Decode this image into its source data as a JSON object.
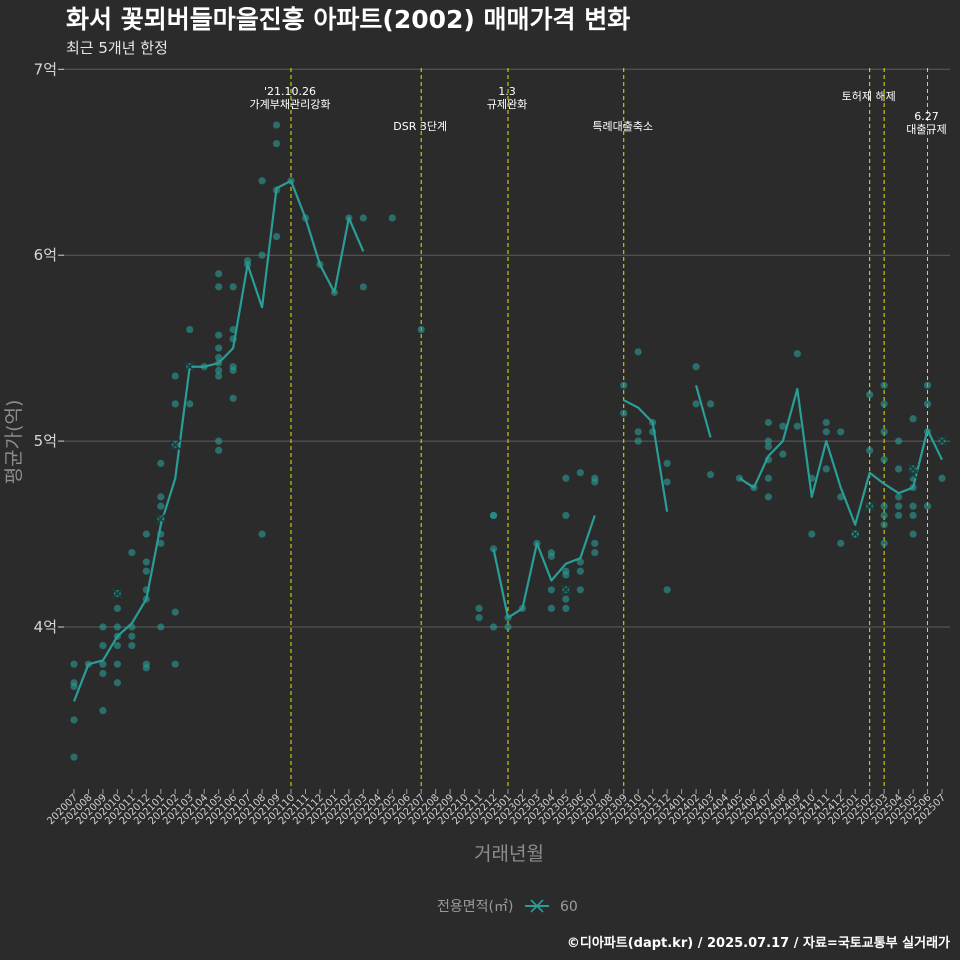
{
  "chart_data": {
    "type": "line",
    "title": "화서 꽃뫼버들마을진흥 아파트(2002) 매매가격 변화",
    "subtitle": "최근 5개년 한정",
    "xlabel": "거래년월",
    "ylabel": "평균가(억)",
    "ylim": [
      3.15,
      7.05
    ],
    "y_ticks": [
      {
        "value": 4,
        "label": "4억"
      },
      {
        "value": 5,
        "label": "5억"
      },
      {
        "value": 6,
        "label": "6억"
      },
      {
        "value": 7,
        "label": "7억"
      }
    ],
    "grid": true,
    "legend_position": "bottom",
    "legend": {
      "title": "전용면적(㎡)",
      "entries": [
        "60"
      ]
    },
    "colors": {
      "line": "#2a9d96",
      "points": "#2a9d96",
      "event_lines": "#e5e500",
      "background": "#2b2b2b",
      "grid": "#5c5c5c"
    },
    "caption": "©디아파트(dapt.kr) / 2025.07.17 / 자료=국토교통부 실거래가",
    "categories": [
      "202007",
      "202008",
      "202009",
      "202010",
      "202011",
      "202012",
      "202101",
      "202102",
      "202103",
      "202104",
      "202105",
      "202106",
      "202107",
      "202108",
      "202109",
      "202110",
      "202111",
      "202112",
      "202201",
      "202202",
      "202203",
      "202204",
      "202205",
      "202206",
      "202207",
      "202208",
      "202209",
      "202210",
      "202211",
      "202212",
      "202301",
      "202302",
      "202303",
      "202304",
      "202305",
      "202306",
      "202307",
      "202308",
      "202309",
      "202310",
      "202311",
      "202312",
      "202401",
      "202402",
      "202403",
      "202404",
      "202405",
      "202406",
      "202407",
      "202408",
      "202409",
      "202410",
      "202411",
      "202412",
      "202501",
      "202502",
      "202503",
      "202504",
      "202505",
      "202506",
      "202507"
    ],
    "series": [
      {
        "name": "60",
        "values": [
          3.6,
          3.8,
          3.82,
          3.95,
          4.02,
          4.15,
          4.55,
          4.8,
          5.4,
          5.4,
          5.42,
          5.5,
          5.95,
          5.72,
          6.36,
          6.4,
          6.2,
          5.95,
          5.8,
          6.2,
          6.02,
          null,
          null,
          null,
          null,
          null,
          null,
          null,
          null,
          4.42,
          4.05,
          4.1,
          4.45,
          4.25,
          4.34,
          4.37,
          4.6,
          null,
          5.22,
          5.18,
          5.1,
          4.62,
          null,
          5.3,
          5.02,
          null,
          4.8,
          4.75,
          4.92,
          5.0,
          5.28,
          4.7,
          5.0,
          4.75,
          4.55,
          4.83,
          4.77,
          4.72,
          4.75,
          5.06,
          4.9
        ]
      }
    ],
    "points": [
      {
        "x": "202007",
        "y": 3.3
      },
      {
        "x": "202007",
        "y": 3.5
      },
      {
        "x": "202007",
        "y": 3.68
      },
      {
        "x": "202007",
        "y": 3.7
      },
      {
        "x": "202007",
        "y": 3.8
      },
      {
        "x": "202008",
        "y": 3.8
      },
      {
        "x": "202009",
        "y": 3.55
      },
      {
        "x": "202009",
        "y": 3.75
      },
      {
        "x": "202009",
        "y": 3.8
      },
      {
        "x": "202009",
        "y": 3.9
      },
      {
        "x": "202009",
        "y": 4.0
      },
      {
        "x": "202010",
        "y": 3.7
      },
      {
        "x": "202010",
        "y": 3.8
      },
      {
        "x": "202010",
        "y": 3.9
      },
      {
        "x": "202010",
        "y": 3.95
      },
      {
        "x": "202010",
        "y": 4.0
      },
      {
        "x": "202010",
        "y": 4.1
      },
      {
        "x": "202010",
        "y": 4.18
      },
      {
        "x": "202011",
        "y": 3.9
      },
      {
        "x": "202011",
        "y": 3.95
      },
      {
        "x": "202011",
        "y": 4.0
      },
      {
        "x": "202011",
        "y": 4.4
      },
      {
        "x": "202012",
        "y": 3.78
      },
      {
        "x": "202012",
        "y": 3.8
      },
      {
        "x": "202012",
        "y": 4.15
      },
      {
        "x": "202012",
        "y": 4.2
      },
      {
        "x": "202012",
        "y": 4.3
      },
      {
        "x": "202012",
        "y": 4.35
      },
      {
        "x": "202012",
        "y": 4.5
      },
      {
        "x": "202101",
        "y": 4.0
      },
      {
        "x": "202101",
        "y": 4.45
      },
      {
        "x": "202101",
        "y": 4.5
      },
      {
        "x": "202101",
        "y": 4.58
      },
      {
        "x": "202101",
        "y": 4.65
      },
      {
        "x": "202101",
        "y": 4.7
      },
      {
        "x": "202101",
        "y": 4.88
      },
      {
        "x": "202102",
        "y": 3.8
      },
      {
        "x": "202102",
        "y": 4.08
      },
      {
        "x": "202102",
        "y": 4.98
      },
      {
        "x": "202102",
        "y": 5.2
      },
      {
        "x": "202102",
        "y": 5.35
      },
      {
        "x": "202103",
        "y": 5.2
      },
      {
        "x": "202103",
        "y": 5.4
      },
      {
        "x": "202103",
        "y": 5.6
      },
      {
        "x": "202104",
        "y": 5.4
      },
      {
        "x": "202105",
        "y": 4.95
      },
      {
        "x": "202105",
        "y": 5.0
      },
      {
        "x": "202105",
        "y": 5.35
      },
      {
        "x": "202105",
        "y": 5.38
      },
      {
        "x": "202105",
        "y": 5.42
      },
      {
        "x": "202105",
        "y": 5.45
      },
      {
        "x": "202105",
        "y": 5.5
      },
      {
        "x": "202105",
        "y": 5.57
      },
      {
        "x": "202105",
        "y": 5.83
      },
      {
        "x": "202105",
        "y": 5.9
      },
      {
        "x": "202106",
        "y": 5.23
      },
      {
        "x": "202106",
        "y": 5.38
      },
      {
        "x": "202106",
        "y": 5.4
      },
      {
        "x": "202106",
        "y": 5.55
      },
      {
        "x": "202106",
        "y": 5.6
      },
      {
        "x": "202106",
        "y": 5.83
      },
      {
        "x": "202107",
        "y": 5.95
      },
      {
        "x": "202107",
        "y": 5.97
      },
      {
        "x": "202108",
        "y": 4.5
      },
      {
        "x": "202108",
        "y": 6.0
      },
      {
        "x": "202108",
        "y": 6.4
      },
      {
        "x": "202109",
        "y": 6.1
      },
      {
        "x": "202109",
        "y": 6.35
      },
      {
        "x": "202109",
        "y": 6.6
      },
      {
        "x": "202109",
        "y": 6.7
      },
      {
        "x": "202110",
        "y": 6.4
      },
      {
        "x": "202111",
        "y": 6.2
      },
      {
        "x": "202112",
        "y": 5.95
      },
      {
        "x": "202201",
        "y": 5.8
      },
      {
        "x": "202202",
        "y": 6.2
      },
      {
        "x": "202203",
        "y": 5.83
      },
      {
        "x": "202203",
        "y": 6.2
      },
      {
        "x": "202205",
        "y": 6.2
      },
      {
        "x": "202207",
        "y": 5.6
      },
      {
        "x": "202211",
        "y": 4.05
      },
      {
        "x": "202211",
        "y": 4.1
      },
      {
        "x": "202212",
        "y": 4.0
      },
      {
        "x": "202212",
        "y": 4.42
      },
      {
        "x": "202212",
        "y": 4.6
      },
      {
        "x": "202212",
        "y": 4.6
      },
      {
        "x": "202301",
        "y": 4.0
      },
      {
        "x": "202301",
        "y": 4.05
      },
      {
        "x": "202302",
        "y": 4.1
      },
      {
        "x": "202303",
        "y": 4.45
      },
      {
        "x": "202304",
        "y": 4.1
      },
      {
        "x": "202304",
        "y": 4.2
      },
      {
        "x": "202304",
        "y": 4.38
      },
      {
        "x": "202304",
        "y": 4.4
      },
      {
        "x": "202305",
        "y": 4.1
      },
      {
        "x": "202305",
        "y": 4.15
      },
      {
        "x": "202305",
        "y": 4.2
      },
      {
        "x": "202305",
        "y": 4.28
      },
      {
        "x": "202305",
        "y": 4.3
      },
      {
        "x": "202305",
        "y": 4.6
      },
      {
        "x": "202305",
        "y": 4.8
      },
      {
        "x": "202306",
        "y": 4.2
      },
      {
        "x": "202306",
        "y": 4.3
      },
      {
        "x": "202306",
        "y": 4.35
      },
      {
        "x": "202306",
        "y": 4.83
      },
      {
        "x": "202307",
        "y": 4.4
      },
      {
        "x": "202307",
        "y": 4.45
      },
      {
        "x": "202307",
        "y": 4.78
      },
      {
        "x": "202307",
        "y": 4.8
      },
      {
        "x": "202309",
        "y": 5.15
      },
      {
        "x": "202309",
        "y": 5.3
      },
      {
        "x": "202310",
        "y": 5.0
      },
      {
        "x": "202310",
        "y": 5.05
      },
      {
        "x": "202310",
        "y": 5.48
      },
      {
        "x": "202311",
        "y": 5.05
      },
      {
        "x": "202311",
        "y": 5.1
      },
      {
        "x": "202312",
        "y": 4.2
      },
      {
        "x": "202312",
        "y": 4.78
      },
      {
        "x": "202312",
        "y": 4.88
      },
      {
        "x": "202402",
        "y": 5.2
      },
      {
        "x": "202402",
        "y": 5.4
      },
      {
        "x": "202403",
        "y": 4.82
      },
      {
        "x": "202403",
        "y": 5.2
      },
      {
        "x": "202405",
        "y": 4.8
      },
      {
        "x": "202406",
        "y": 4.75
      },
      {
        "x": "202407",
        "y": 4.7
      },
      {
        "x": "202407",
        "y": 4.8
      },
      {
        "x": "202407",
        "y": 4.9
      },
      {
        "x": "202407",
        "y": 4.97
      },
      {
        "x": "202407",
        "y": 5.0
      },
      {
        "x": "202407",
        "y": 5.1
      },
      {
        "x": "202408",
        "y": 4.93
      },
      {
        "x": "202408",
        "y": 5.08
      },
      {
        "x": "202409",
        "y": 5.08
      },
      {
        "x": "202409",
        "y": 5.47
      },
      {
        "x": "202410",
        "y": 4.5
      },
      {
        "x": "202410",
        "y": 4.8
      },
      {
        "x": "202411",
        "y": 4.85
      },
      {
        "x": "202411",
        "y": 5.05
      },
      {
        "x": "202411",
        "y": 5.1
      },
      {
        "x": "202412",
        "y": 4.45
      },
      {
        "x": "202412",
        "y": 4.7
      },
      {
        "x": "202412",
        "y": 5.05
      },
      {
        "x": "202501",
        "y": 4.5
      },
      {
        "x": "202501",
        "y": 4.5
      },
      {
        "x": "202502",
        "y": 4.65
      },
      {
        "x": "202502",
        "y": 4.95
      },
      {
        "x": "202502",
        "y": 5.25
      },
      {
        "x": "202503",
        "y": 4.45
      },
      {
        "x": "202503",
        "y": 4.55
      },
      {
        "x": "202503",
        "y": 4.6
      },
      {
        "x": "202503",
        "y": 4.65
      },
      {
        "x": "202503",
        "y": 4.9
      },
      {
        "x": "202503",
        "y": 5.05
      },
      {
        "x": "202503",
        "y": 5.2
      },
      {
        "x": "202503",
        "y": 5.3
      },
      {
        "x": "202504",
        "y": 4.6
      },
      {
        "x": "202504",
        "y": 4.65
      },
      {
        "x": "202504",
        "y": 4.7
      },
      {
        "x": "202504",
        "y": 4.85
      },
      {
        "x": "202504",
        "y": 5.0
      },
      {
        "x": "202505",
        "y": 4.5
      },
      {
        "x": "202505",
        "y": 4.6
      },
      {
        "x": "202505",
        "y": 4.65
      },
      {
        "x": "202505",
        "y": 4.75
      },
      {
        "x": "202505",
        "y": 4.8
      },
      {
        "x": "202505",
        "y": 4.85
      },
      {
        "x": "202505",
        "y": 5.12
      },
      {
        "x": "202506",
        "y": 4.65
      },
      {
        "x": "202506",
        "y": 5.05
      },
      {
        "x": "202506",
        "y": 5.2
      },
      {
        "x": "202506",
        "y": 5.3
      },
      {
        "x": "202507",
        "y": 4.8
      },
      {
        "x": "202507",
        "y": 5.0
      }
    ],
    "cross_markers": [
      {
        "x": "202010",
        "y": 4.18
      },
      {
        "x": "202101",
        "y": 4.58
      },
      {
        "x": "202102",
        "y": 4.98
      },
      {
        "x": "202103",
        "y": 5.4
      },
      {
        "x": "202305",
        "y": 4.2
      },
      {
        "x": "202501",
        "y": 4.5
      },
      {
        "x": "202502",
        "y": 4.65
      },
      {
        "x": "202505",
        "y": 4.82
      },
      {
        "x": "202505",
        "y": 4.85
      },
      {
        "x": "202507",
        "y": 5.0
      }
    ],
    "events": [
      {
        "x": "202110",
        "lines": [
          "'21.10.26",
          "가계부채관리강화"
        ],
        "row": 0
      },
      {
        "x": "202207",
        "lines": [
          "DSR 3단계"
        ],
        "row": 2
      },
      {
        "x": "202301",
        "lines": [
          "1.3",
          "규제완화"
        ],
        "row": 0
      },
      {
        "x": "202309",
        "lines": [
          "특례대출축소"
        ],
        "row": 2
      },
      {
        "x": "202502",
        "lines": [
          "토허제 해제"
        ],
        "row": 1
      },
      {
        "x": "202503",
        "lines": [],
        "row": 1
      },
      {
        "x": "202506",
        "lines": [
          "6.27",
          "대출규제"
        ],
        "row": 3
      }
    ]
  }
}
